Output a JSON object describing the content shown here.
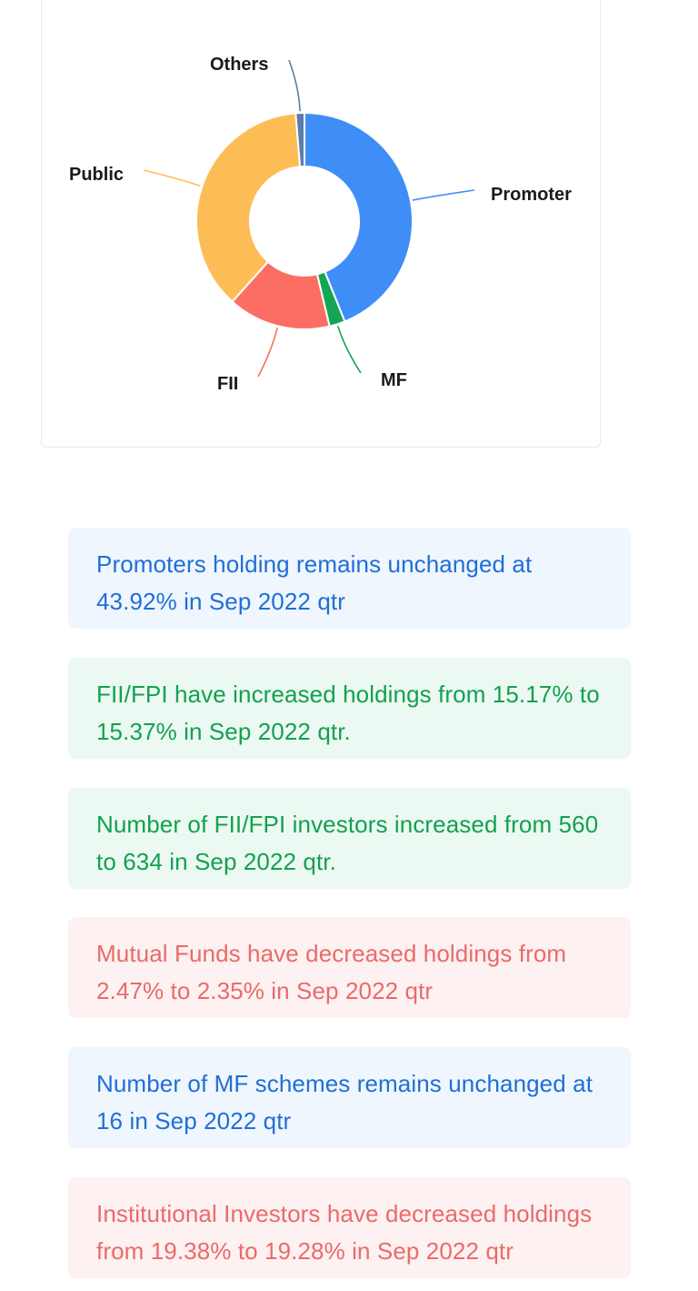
{
  "chart_data": {
    "type": "pie",
    "subtype": "donut",
    "slices": [
      {
        "label": "Promoter",
        "value": 43.92,
        "color": "#3f8ef8"
      },
      {
        "label": "MF",
        "value": 2.35,
        "color": "#13a655"
      },
      {
        "label": "FII",
        "value": 15.37,
        "color": "#fc6e63"
      },
      {
        "label": "Public",
        "value": 37.06,
        "color": "#fdbd56"
      },
      {
        "label": "Others",
        "value": 1.3,
        "color": "#5a7ea7"
      }
    ]
  },
  "insights": [
    {
      "text": "Promoters holding remains unchanged at 43.92% in Sep 2022 qtr",
      "tone": "info"
    },
    {
      "text": "FII/FPI have increased holdings from 15.17% to 15.37% in Sep 2022 qtr.",
      "tone": "positive"
    },
    {
      "text": "Number of FII/FPI investors increased from 560 to 634 in Sep 2022 qtr.",
      "tone": "positive"
    },
    {
      "text": "Mutual Funds have decreased holdings from 2.47% to 2.35% in Sep 2022 qtr",
      "tone": "negative"
    },
    {
      "text": "Number of MF schemes remains unchanged at 16 in Sep 2022 qtr",
      "tone": "info"
    },
    {
      "text": "Institutional Investors have decreased holdings from 19.38% to 19.28% in Sep 2022 qtr",
      "tone": "negative"
    }
  ]
}
